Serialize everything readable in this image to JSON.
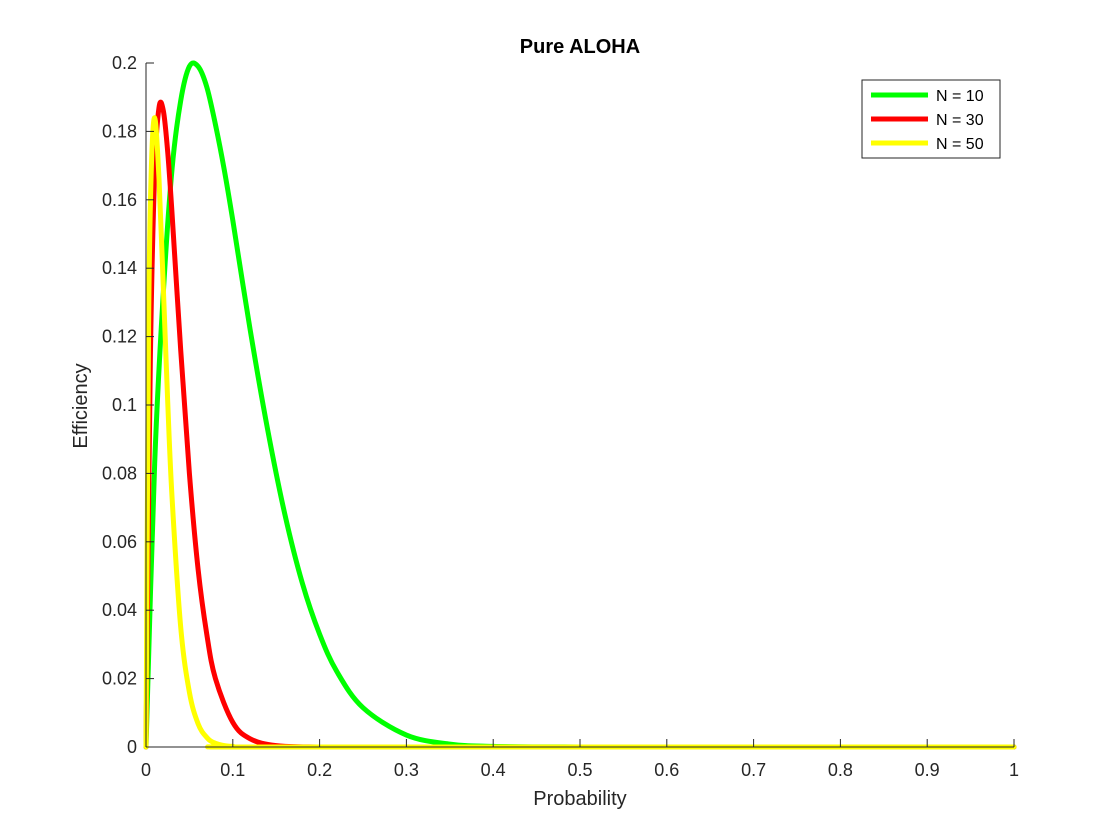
{
  "chart_data": {
    "type": "line",
    "title": "Pure ALOHA",
    "xlabel": "Probability",
    "ylabel": "Efficiency",
    "xlim": [
      0,
      1
    ],
    "ylim": [
      0,
      0.2
    ],
    "xticks": [
      "0",
      "0.1",
      "0.2",
      "0.3",
      "0.4",
      "0.5",
      "0.6",
      "0.7",
      "0.8",
      "0.9",
      "1"
    ],
    "yticks": [
      "0",
      "0.02",
      "0.04",
      "0.06",
      "0.08",
      "0.1",
      "0.12",
      "0.14",
      "0.16",
      "0.18",
      "0.2"
    ],
    "grid": false,
    "legend_position": "top-right",
    "series": [
      {
        "name": "N = 10",
        "color": "#00ff00",
        "x": [
          0,
          0.01,
          0.02,
          0.03,
          0.04,
          0.05,
          0.06,
          0.07,
          0.08,
          0.09,
          0.1,
          0.12,
          0.14,
          0.16,
          0.18,
          0.2,
          0.22,
          0.25,
          0.3,
          0.35,
          0.4,
          0.5,
          0.6,
          0.8,
          1
        ],
        "values": [
          0,
          0.083,
          0.133,
          0.169,
          0.189,
          0.199,
          0.199,
          0.193,
          0.182,
          0.169,
          0.154,
          0.122,
          0.093,
          0.068,
          0.048,
          0.033,
          0.022,
          0.0115,
          0.0035,
          0.00085,
          0.00018,
          5e-06,
          0,
          0,
          0
        ]
      },
      {
        "name": "N = 30",
        "color": "#ff0000",
        "x": [
          0,
          0.005,
          0.01,
          0.015,
          0.02,
          0.025,
          0.03,
          0.04,
          0.05,
          0.06,
          0.07,
          0.08,
          0.1,
          0.12,
          0.15,
          0.2,
          0.3,
          1
        ],
        "values": [
          0,
          0.113,
          0.168,
          0.187,
          0.186,
          0.174,
          0.156,
          0.116,
          0.08,
          0.052,
          0.033,
          0.02,
          0.0072,
          0.0024,
          0.00042,
          1.5e-05,
          0,
          0
        ]
      },
      {
        "name": "N = 50",
        "color": "#ffff00",
        "x": [
          0,
          0.003,
          0.006,
          0.01,
          0.015,
          0.02,
          0.025,
          0.03,
          0.04,
          0.05,
          0.06,
          0.07,
          0.08,
          0.1,
          0.15,
          1
        ],
        "values": [
          0,
          0.123,
          0.168,
          0.184,
          0.166,
          0.134,
          0.101,
          0.073,
          0.035,
          0.016,
          0.0068,
          0.0028,
          0.0011,
          0.00017,
          1e-06,
          0
        ]
      }
    ]
  }
}
